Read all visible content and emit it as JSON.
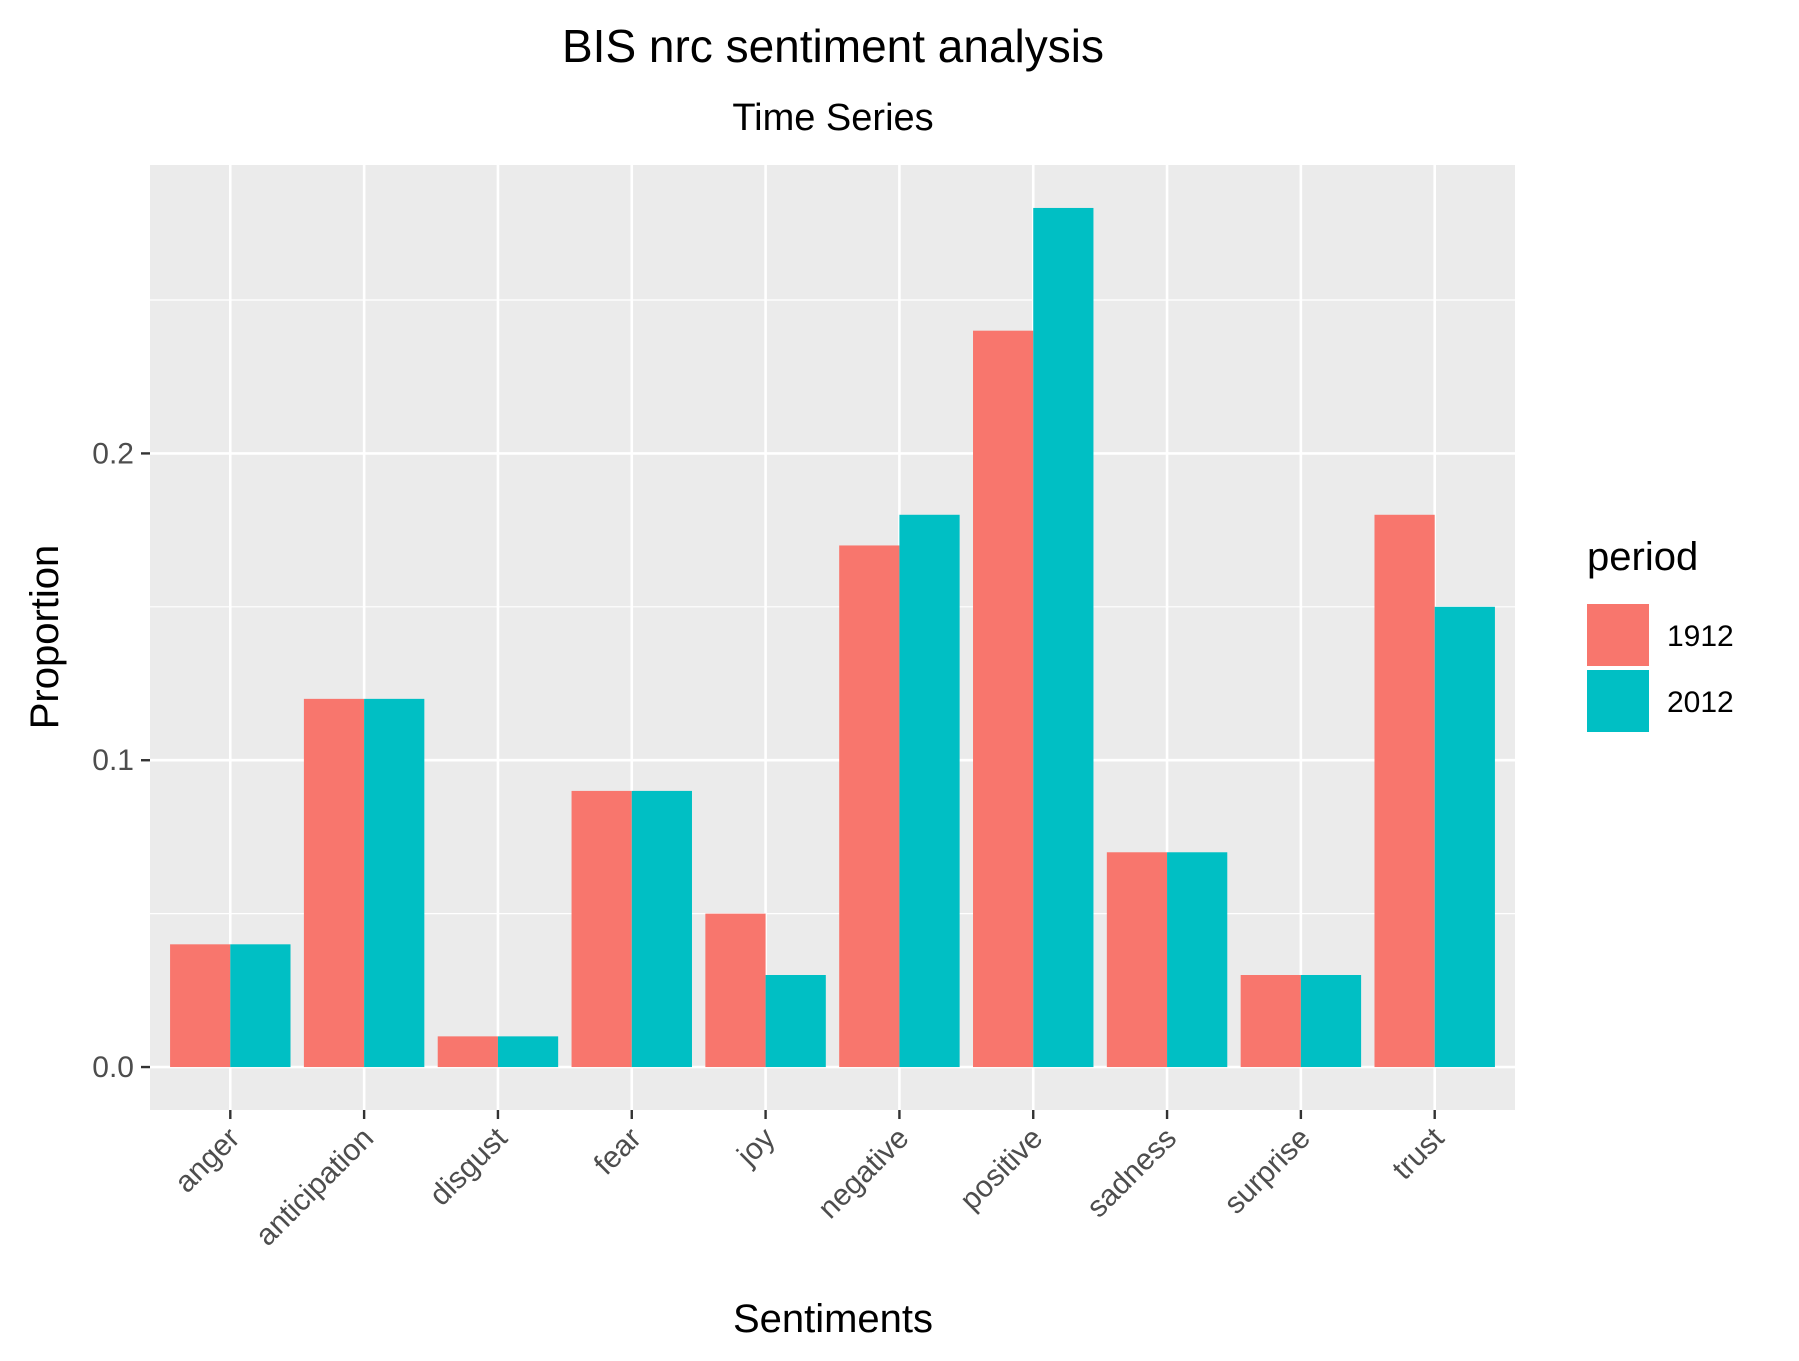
{
  "chart_data": {
    "type": "bar",
    "title": "BIS nrc sentiment analysis",
    "subtitle": "Time Series",
    "xlabel": "Sentiments",
    "ylabel": "Proportion",
    "ylim": [
      -0.014,
      0.294
    ],
    "yticks": [
      {
        "value": 0.0,
        "label": "0.0"
      },
      {
        "value": 0.1,
        "label": "0.1"
      },
      {
        "value": 0.2,
        "label": "0.2"
      }
    ],
    "grid": true,
    "background": "#ebebeb",
    "categories": [
      "anger",
      "anticipation",
      "disgust",
      "fear",
      "joy",
      "negative",
      "positive",
      "sadness",
      "surprise",
      "trust"
    ],
    "series": [
      {
        "name": "1912",
        "color": "#f8766d",
        "values": [
          0.04,
          0.12,
          0.01,
          0.09,
          0.05,
          0.17,
          0.24,
          0.07,
          0.03,
          0.18
        ]
      },
      {
        "name": "2012",
        "color": "#00bfc4",
        "values": [
          0.04,
          0.12,
          0.01,
          0.09,
          0.03,
          0.18,
          0.28,
          0.07,
          0.03,
          0.15
        ]
      }
    ],
    "legend": {
      "title": "period",
      "placement": "right"
    }
  }
}
